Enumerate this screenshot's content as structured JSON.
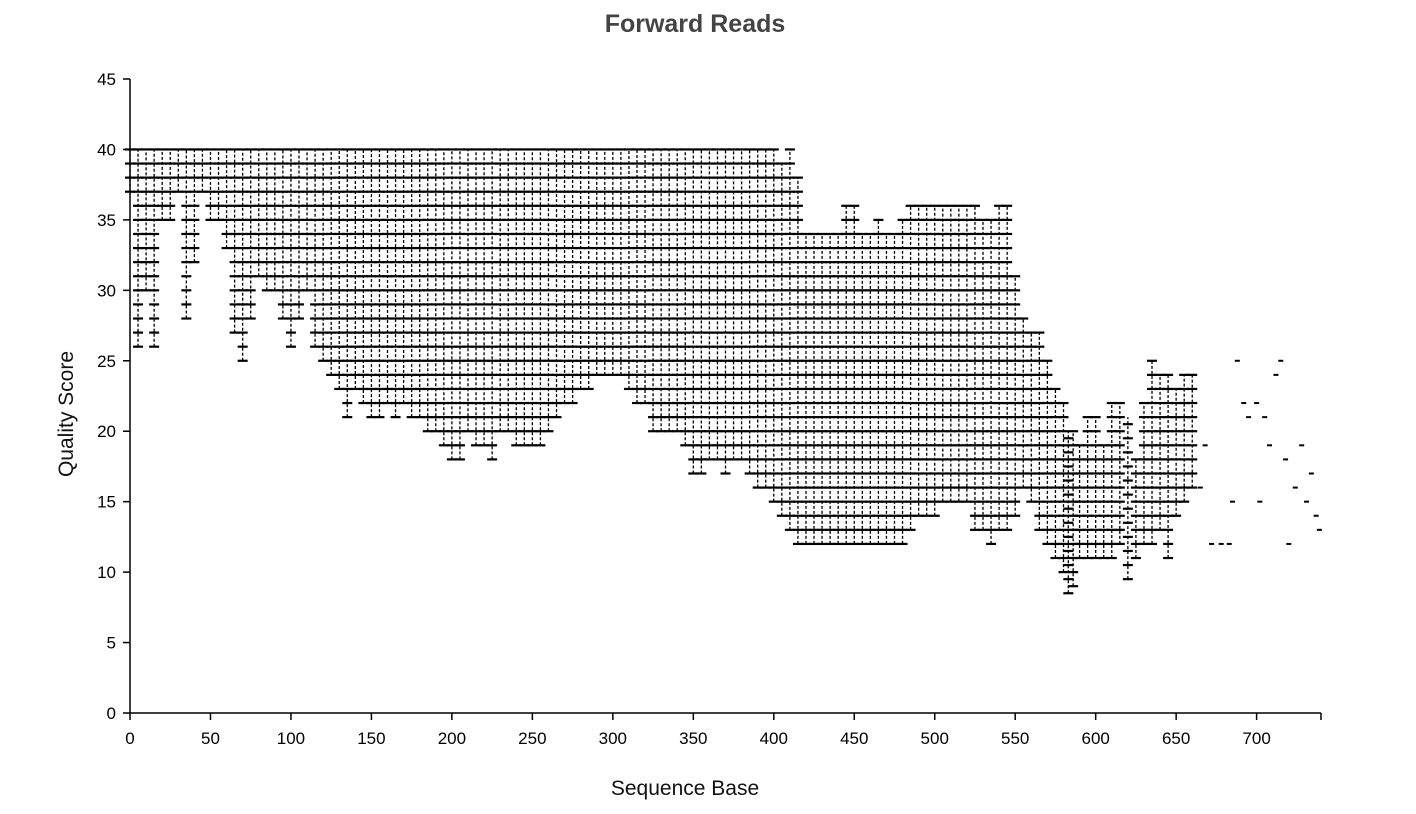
{
  "chart_data": {
    "type": "scatter",
    "title": "Forward Reads",
    "xlabel": "Sequence Base",
    "ylabel": "Quality Score",
    "xlim": [
      0,
      740
    ],
    "ylim": [
      0,
      45
    ],
    "xticks": [
      0,
      50,
      100,
      150,
      200,
      250,
      300,
      350,
      400,
      450,
      500,
      550,
      600,
      650,
      700
    ],
    "yticks": [
      0,
      5,
      10,
      15,
      20,
      25,
      30,
      35,
      40,
      45
    ],
    "grid": false,
    "legend": "none",
    "mark_color": "#000000",
    "note_description": "Per-base quality score ranges (min–max spread) across forward reads",
    "series": [
      {
        "ranges": [
          [
            0,
            37,
            40
          ],
          [
            5,
            26,
            40
          ],
          [
            10,
            30,
            40
          ],
          [
            15,
            26,
            40
          ],
          [
            20,
            35,
            40
          ],
          [
            25,
            35,
            40
          ],
          [
            30,
            37,
            40
          ],
          [
            35,
            28,
            40
          ],
          [
            40,
            32,
            40
          ],
          [
            45,
            37,
            40
          ],
          [
            50,
            35,
            40
          ],
          [
            55,
            35,
            40
          ],
          [
            60,
            33,
            40
          ],
          [
            65,
            27,
            40
          ],
          [
            70,
            25,
            40
          ],
          [
            75,
            28,
            40
          ],
          [
            80,
            31,
            40
          ],
          [
            85,
            30,
            40
          ],
          [
            90,
            30,
            40
          ],
          [
            95,
            28,
            40
          ],
          [
            100,
            26,
            40
          ],
          [
            105,
            28,
            40
          ],
          [
            110,
            30,
            40
          ],
          [
            115,
            26,
            40
          ],
          [
            120,
            25,
            40
          ],
          [
            125,
            24,
            40
          ],
          [
            130,
            23,
            40
          ],
          [
            135,
            21,
            40
          ],
          [
            140,
            23,
            40
          ],
          [
            145,
            22,
            40
          ],
          [
            150,
            21,
            40
          ],
          [
            155,
            21,
            40
          ],
          [
            160,
            22,
            40
          ],
          [
            165,
            21,
            40
          ],
          [
            170,
            22,
            40
          ],
          [
            175,
            21,
            40
          ],
          [
            180,
            21,
            40
          ],
          [
            185,
            20,
            40
          ],
          [
            190,
            20,
            40
          ],
          [
            195,
            19,
            40
          ],
          [
            200,
            18,
            40
          ],
          [
            205,
            18,
            40
          ],
          [
            210,
            20,
            40
          ],
          [
            215,
            19,
            40
          ],
          [
            220,
            19,
            40
          ],
          [
            225,
            18,
            40
          ],
          [
            230,
            20,
            40
          ],
          [
            235,
            20,
            40
          ],
          [
            240,
            19,
            40
          ],
          [
            245,
            19,
            40
          ],
          [
            250,
            19,
            40
          ],
          [
            255,
            19,
            40
          ],
          [
            260,
            20,
            40
          ],
          [
            265,
            21,
            40
          ],
          [
            270,
            22,
            40
          ],
          [
            275,
            22,
            40
          ],
          [
            280,
            23,
            40
          ],
          [
            285,
            23,
            40
          ],
          [
            290,
            24,
            40
          ],
          [
            295,
            24,
            40
          ],
          [
            300,
            24,
            40
          ],
          [
            305,
            24,
            40
          ],
          [
            310,
            23,
            40
          ],
          [
            315,
            22,
            40
          ],
          [
            320,
            22,
            40
          ],
          [
            325,
            20,
            40
          ],
          [
            330,
            20,
            40
          ],
          [
            335,
            20,
            40
          ],
          [
            340,
            20,
            40
          ],
          [
            345,
            19,
            40
          ],
          [
            350,
            17,
            40
          ],
          [
            355,
            17,
            40
          ],
          [
            360,
            18,
            40
          ],
          [
            365,
            18,
            40
          ],
          [
            370,
            17,
            40
          ],
          [
            375,
            18,
            40
          ],
          [
            380,
            18,
            40
          ],
          [
            385,
            17,
            40
          ],
          [
            390,
            16,
            40
          ],
          [
            395,
            16,
            40
          ],
          [
            400,
            15,
            40
          ],
          [
            405,
            14,
            39
          ],
          [
            410,
            13,
            40
          ],
          [
            415,
            12,
            38
          ],
          [
            420,
            12,
            34
          ],
          [
            425,
            12,
            34
          ],
          [
            430,
            12,
            34
          ],
          [
            435,
            12,
            34
          ],
          [
            440,
            12,
            34
          ],
          [
            445,
            12,
            36
          ],
          [
            450,
            12,
            36
          ],
          [
            455,
            12,
            34
          ],
          [
            460,
            12,
            34
          ],
          [
            465,
            12,
            35
          ],
          [
            470,
            12,
            34
          ],
          [
            475,
            12,
            34
          ],
          [
            480,
            12,
            35
          ],
          [
            485,
            13,
            36
          ],
          [
            490,
            14,
            36
          ],
          [
            495,
            14,
            36
          ],
          [
            500,
            14,
            36
          ],
          [
            505,
            15,
            36
          ],
          [
            510,
            15,
            36
          ],
          [
            515,
            15,
            36
          ],
          [
            520,
            15,
            36
          ],
          [
            525,
            13,
            36
          ],
          [
            530,
            13,
            35
          ],
          [
            535,
            12,
            35
          ],
          [
            540,
            13,
            36
          ],
          [
            545,
            13,
            36
          ],
          [
            550,
            14,
            31
          ],
          [
            555,
            16,
            28
          ],
          [
            560,
            15,
            27
          ],
          [
            565,
            13,
            27
          ],
          [
            570,
            12,
            25
          ],
          [
            575,
            11,
            23
          ],
          [
            580,
            10,
            22
          ],
          [
            583,
            8.5,
            20
          ],
          [
            586,
            9,
            20
          ],
          [
            590,
            11,
            19
          ],
          [
            595,
            11,
            21
          ],
          [
            600,
            11,
            21
          ],
          [
            605,
            11,
            19
          ],
          [
            610,
            11,
            22
          ],
          [
            615,
            12,
            22
          ],
          [
            620,
            9.5,
            21
          ],
          [
            625,
            11,
            18
          ],
          [
            630,
            12,
            22
          ],
          [
            635,
            12,
            25
          ],
          [
            640,
            13,
            24
          ],
          [
            645,
            11,
            24
          ],
          [
            650,
            14,
            23
          ],
          [
            655,
            15,
            24
          ],
          [
            660,
            16,
            24
          ]
        ]
      },
      {
        "sparse_points": [
          [
            665,
            16
          ],
          [
            668,
            19
          ],
          [
            672,
            12
          ],
          [
            678,
            12
          ],
          [
            683,
            12
          ],
          [
            685,
            15
          ],
          [
            688,
            25
          ],
          [
            692,
            22
          ],
          [
            695,
            21
          ],
          [
            700,
            22
          ],
          [
            702,
            15
          ],
          [
            705,
            21
          ],
          [
            708,
            19
          ],
          [
            712,
            24
          ],
          [
            715,
            25
          ],
          [
            718,
            18
          ],
          [
            720,
            12
          ],
          [
            724,
            16
          ],
          [
            728,
            19
          ],
          [
            731,
            15
          ],
          [
            734,
            17
          ],
          [
            737,
            14
          ],
          [
            739,
            13
          ]
        ]
      }
    ]
  }
}
